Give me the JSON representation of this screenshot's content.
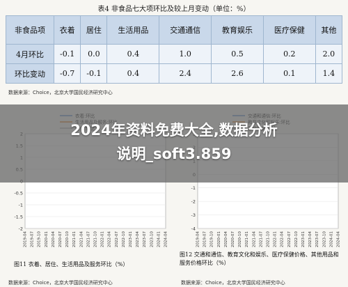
{
  "table": {
    "caption": "表4  非食品七大项环比及较上月变动（单位：%）",
    "headers": [
      "非食品项",
      "衣着",
      "居住",
      "生活用品",
      "交通通信",
      "教育娱乐",
      "医疗保健",
      "其他"
    ],
    "rows": [
      {
        "label": "4月环比",
        "values": [
          "-0.1",
          "0.0",
          "0.4",
          "1.0",
          "0.5",
          "0.2",
          "2.0"
        ]
      },
      {
        "label": "环比变动",
        "values": [
          "-0.7",
          "-0.1",
          "0.4",
          "2.4",
          "2.6",
          "0.1",
          "1.4"
        ]
      }
    ],
    "source": "数据来源：Choice，北京大学国民经济研究中心"
  },
  "banner": {
    "line1": "2024年资料免费大全,数据分析",
    "line2": "说明_soft3.859"
  },
  "chart_data": [
    {
      "type": "line",
      "title": "",
      "series": [
        {
          "name": "衣着:环比",
          "color": "#6b9bd1"
        },
        {
          "name": "生活用品及服务:环比",
          "color": "#e08a3a"
        },
        {
          "name": "居住:环比",
          "color": "#b9b9b9"
        }
      ],
      "x_ticks": [
        "2019-04",
        "2019-07",
        "2019-10",
        "2020-01",
        "2020-04",
        "2020-07",
        "2020-10",
        "2021-01",
        "2021-04",
        "2021-07",
        "2021-10",
        "2022-01",
        "2022-04",
        "2022-07",
        "2022-10",
        "2023-01",
        "2023-04",
        "2023-07",
        "2023-10",
        "2024-01",
        "2024-04"
      ],
      "y_ticks": [
        "2",
        "1.5",
        "1",
        "0.5",
        "0",
        "-0.5",
        "-1",
        "-1.5",
        "-2"
      ],
      "ylim": [
        -2,
        2
      ],
      "caption": "图11  衣着、居住、生活用品及服务环比（%）",
      "source": "数据来源：Choice，北京大学国民经济研究中心"
    },
    {
      "type": "line",
      "title": "",
      "series": [
        {
          "name": "交通和通信:环比",
          "color": "#6b9bd1"
        },
        {
          "name": "教育文化和娱乐:环比",
          "color": "#e08a3a"
        },
        {
          "name": "医疗保健:环比",
          "color": "#b9b9b9"
        }
      ],
      "x_ticks": [
        "2019-04",
        "2019-07",
        "2019-10",
        "2020-01",
        "2020-04",
        "2020-07",
        "2020-10",
        "2021-01",
        "2021-04",
        "2021-07",
        "2021-10",
        "2022-01",
        "2022-04",
        "2022-07",
        "2022-10",
        "2023-01",
        "2023-04",
        "2023-07",
        "2023-10",
        "2024-01",
        "2024-04"
      ],
      "y_ticks": [
        "3",
        "2",
        "1",
        "0",
        "-1",
        "-2",
        "-3",
        "-4"
      ],
      "ylim": [
        -4,
        3
      ],
      "caption": "图12  交通和通信、教育文化和娱乐、医疗保健价格、其他用品和服务价格环比（%）",
      "source": "数据来源：Choice，北京大学国民经济研究中心"
    }
  ]
}
